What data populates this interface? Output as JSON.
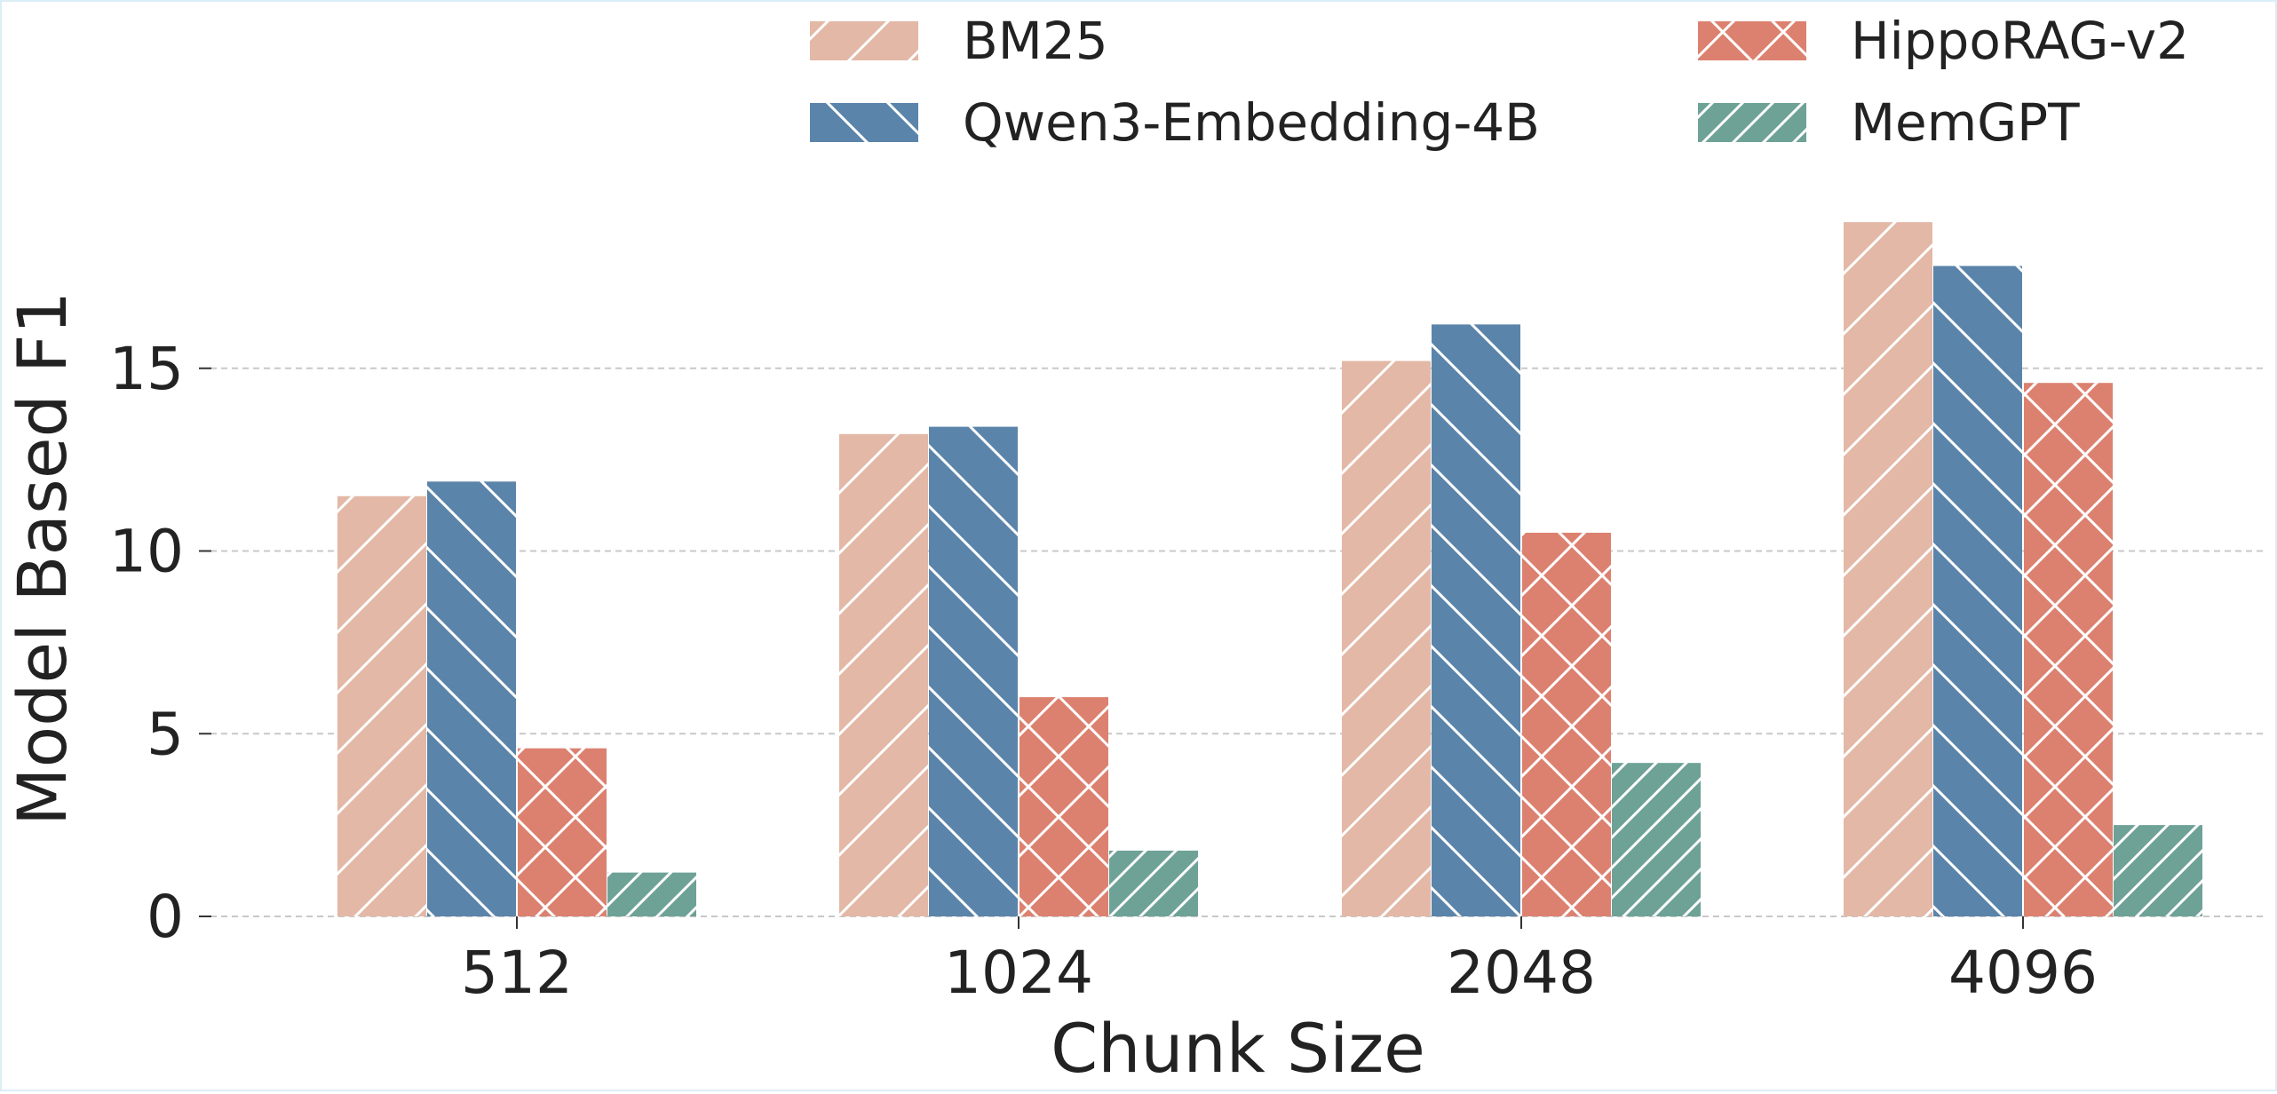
{
  "chart_data": {
    "type": "bar",
    "xlabel": "Chunk Size",
    "ylabel": "Model Based F1",
    "categories": [
      "512",
      "1024",
      "2048",
      "4096"
    ],
    "series": [
      {
        "name": "BM25",
        "values": [
          11.5,
          13.2,
          15.2,
          19.0
        ],
        "color": "#e3b8a6",
        "hatch": "forward"
      },
      {
        "name": "Qwen3-Embedding-4B",
        "values": [
          11.9,
          13.4,
          16.2,
          17.8
        ],
        "color": "#5b84aa",
        "hatch": "backward"
      },
      {
        "name": "HippoRAG-v2",
        "values": [
          4.6,
          6.0,
          10.5,
          14.6
        ],
        "color": "#dc8170",
        "hatch": "cross"
      },
      {
        "name": "MemGPT",
        "values": [
          1.2,
          1.8,
          4.2,
          2.5
        ],
        "color": "#6ea297",
        "hatch": "forward-dense"
      }
    ],
    "yticks": [
      "0",
      "5",
      "10",
      "15"
    ],
    "ylim": [
      0,
      19.5
    ],
    "grid": "y",
    "legend": "top-right"
  }
}
